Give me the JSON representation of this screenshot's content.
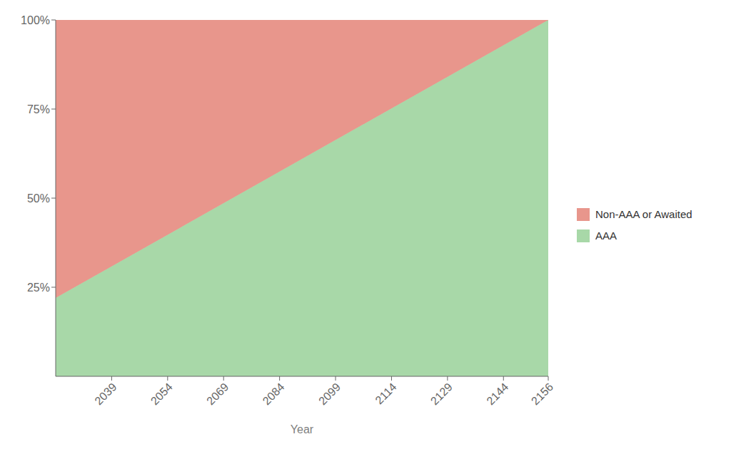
{
  "chart_data": {
    "type": "area",
    "stacked": true,
    "x": [
      2024,
      2156
    ],
    "series": [
      {
        "name": "AAA",
        "color": "#a8d8a8",
        "values": [
          0.22,
          1.0
        ]
      },
      {
        "name": "Non-AAA or Awaited",
        "color": "#e8968c",
        "values": [
          0.78,
          0.0
        ]
      }
    ],
    "xlabel": "Year",
    "xlim": [
      2024,
      2156
    ],
    "xticks": [
      2039,
      2054,
      2069,
      2084,
      2099,
      2114,
      2129,
      2144,
      2156
    ],
    "ylim": [
      0,
      1.0
    ],
    "yticks": [
      {
        "value": 0.25,
        "label": "25%"
      },
      {
        "value": 0.5,
        "label": "50%"
      },
      {
        "value": 0.75,
        "label": "75%"
      },
      {
        "value": 1.0,
        "label": "100%"
      }
    ],
    "grid": false,
    "legend": "right"
  }
}
